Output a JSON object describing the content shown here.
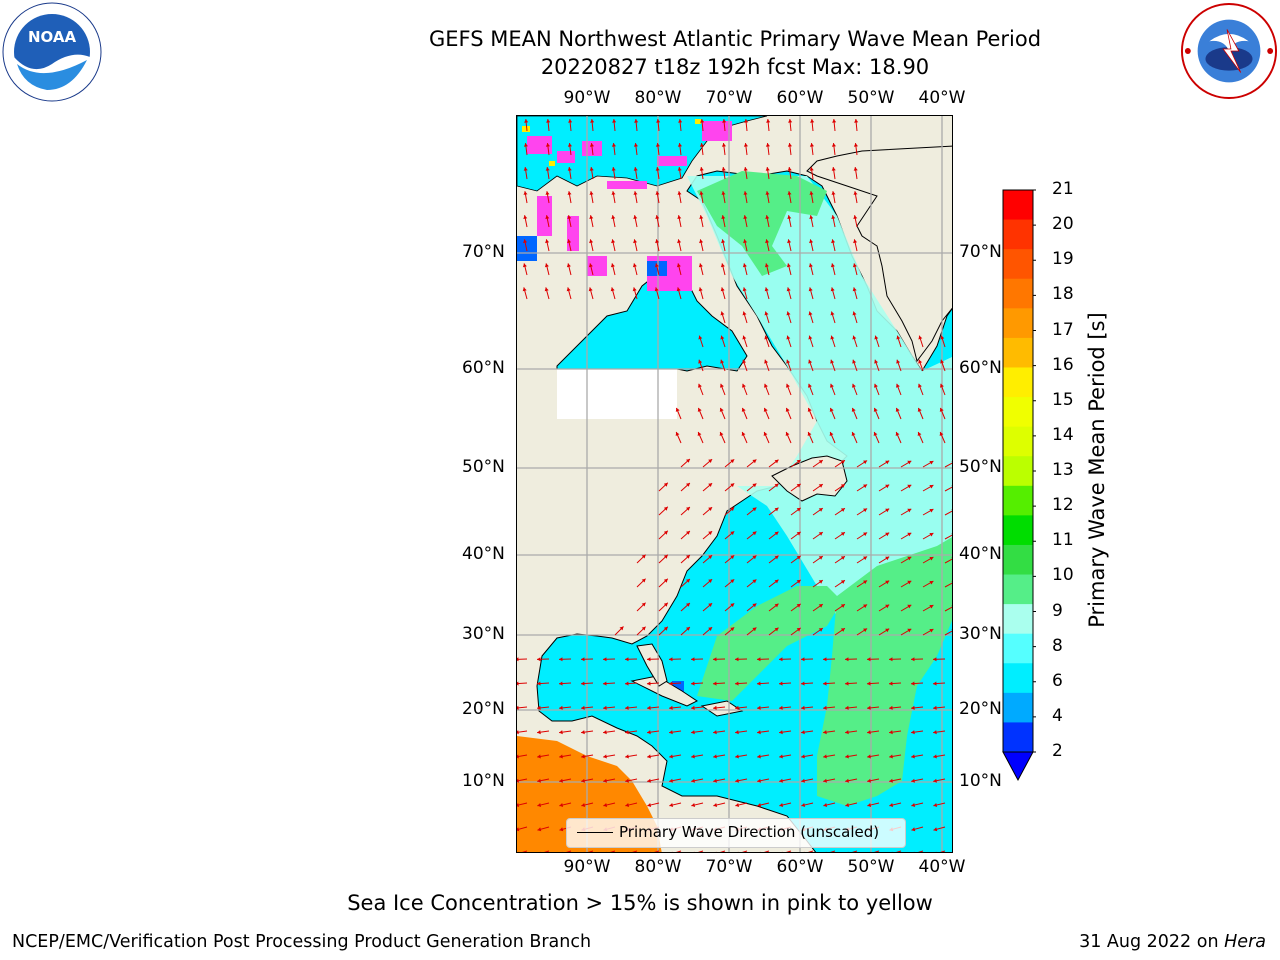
{
  "header": {
    "title_line1": "GEFS MEAN Northwest Atlantic Primary Wave Mean Period",
    "title_line2": "20220827 t18z 192h fcst   Max: 18.90"
  },
  "logos": {
    "left": "NOAA",
    "left_ring_text": "NATIONAL OCEANIC AND ATMOSPHERIC ADMINISTRATION · U.S. DEPARTMENT OF COMMERCE",
    "right_ring_text": "NATIONAL WEATHER SERVICE"
  },
  "axes": {
    "lon_labels": [
      "90°W",
      "80°W",
      "70°W",
      "60°W",
      "50°W",
      "40°W"
    ],
    "lat_labels": [
      "70°N",
      "60°N",
      "50°N",
      "40°N",
      "30°N",
      "20°N",
      "10°N"
    ]
  },
  "colorbar": {
    "label": "Primary Wave Mean Period [s]",
    "ticks": [
      "21",
      "20",
      "19",
      "18",
      "17",
      "16",
      "15",
      "14",
      "13",
      "12",
      "11",
      "10",
      "9",
      "8",
      "6",
      "4",
      "2"
    ],
    "colors_top_to_bottom": [
      "#ff0000",
      "#ff3300",
      "#ff5500",
      "#ff7700",
      "#ff9900",
      "#ffbb00",
      "#ffee00",
      "#f0ff00",
      "#ddff00",
      "#bbff00",
      "#55ee00",
      "#00dd00",
      "#33dd44",
      "#55ee88",
      "#aaffee",
      "#55ffff",
      "#00eeff",
      "#00aaff",
      "#0033ff"
    ],
    "extend_color": "#0000ff"
  },
  "legend": {
    "text": "Primary Wave Direction (unscaled)"
  },
  "footer": {
    "subtitle": "Sea Ice Concentration > 15% is shown in pink to yellow",
    "left": "NCEP/EMC/Verification Post Processing Product Generation Branch",
    "right_date": "31 Aug 2022 on",
    "right_machine": "Hera"
  },
  "map_colors": {
    "land": "#efedde",
    "ocean_short": "#00eeff",
    "ocean_mid": "#aaffee",
    "ocean_long": "#55ee88",
    "warm": "#ff8800",
    "ice": "#ff44ee",
    "arrows": "#dd0000",
    "grid": "#aaaaaa"
  }
}
